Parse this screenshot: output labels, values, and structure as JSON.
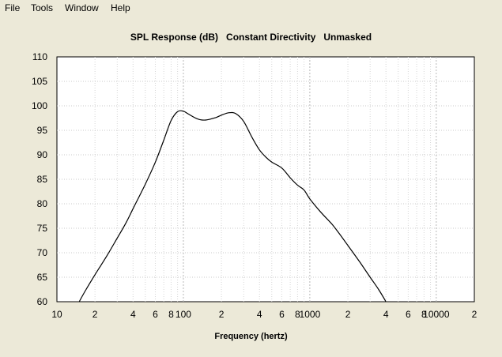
{
  "menu": {
    "items": [
      "File",
      "Tools",
      "Window",
      "Help"
    ]
  },
  "chart_data": {
    "type": "line",
    "title": "SPL Response (dB)   Constant Directivity   Unmasked",
    "xlabel": "Frequency (hertz)",
    "ylabel": "",
    "xscale": "log",
    "xlim": [
      10,
      20000
    ],
    "ylim": [
      60,
      110
    ],
    "grid": true,
    "yticks": [
      60,
      65,
      70,
      75,
      80,
      85,
      90,
      95,
      100,
      105,
      110
    ],
    "xtick_labels": [
      {
        "value": 10,
        "label": "10"
      },
      {
        "value": 20,
        "label": "2"
      },
      {
        "value": 40,
        "label": "4"
      },
      {
        "value": 60,
        "label": "6"
      },
      {
        "value": 80,
        "label": "8"
      },
      {
        "value": 100,
        "label": "100"
      },
      {
        "value": 200,
        "label": "2"
      },
      {
        "value": 400,
        "label": "4"
      },
      {
        "value": 600,
        "label": "6"
      },
      {
        "value": 800,
        "label": "8"
      },
      {
        "value": 1000,
        "label": "1000"
      },
      {
        "value": 2000,
        "label": "2"
      },
      {
        "value": 4000,
        "label": "4"
      },
      {
        "value": 6000,
        "label": "6"
      },
      {
        "value": 8000,
        "label": "8"
      },
      {
        "value": 10000,
        "label": "10000"
      },
      {
        "value": 20000,
        "label": "2"
      }
    ],
    "series": [
      {
        "color": "#000000",
        "points": [
          [
            15,
            60
          ],
          [
            17,
            62.5
          ],
          [
            20,
            65.5
          ],
          [
            25,
            69.5
          ],
          [
            30,
            73
          ],
          [
            35,
            76
          ],
          [
            40,
            79
          ],
          [
            50,
            84
          ],
          [
            60,
            88.5
          ],
          [
            70,
            93
          ],
          [
            80,
            97
          ],
          [
            90,
            98.8
          ],
          [
            100,
            98.9
          ],
          [
            110,
            98.3
          ],
          [
            130,
            97.3
          ],
          [
            150,
            97.1
          ],
          [
            180,
            97.6
          ],
          [
            200,
            98.1
          ],
          [
            230,
            98.6
          ],
          [
            260,
            98.4
          ],
          [
            300,
            96.8
          ],
          [
            350,
            93.5
          ],
          [
            400,
            91
          ],
          [
            450,
            89.5
          ],
          [
            500,
            88.5
          ],
          [
            600,
            87.3
          ],
          [
            700,
            85.3
          ],
          [
            800,
            83.8
          ],
          [
            900,
            82.8
          ],
          [
            1000,
            81
          ],
          [
            1200,
            78.5
          ],
          [
            1500,
            75.8
          ],
          [
            1700,
            74
          ],
          [
            2000,
            71.5
          ],
          [
            2500,
            68
          ],
          [
            3000,
            65
          ],
          [
            3500,
            62.5
          ],
          [
            4000,
            60
          ]
        ]
      }
    ]
  }
}
